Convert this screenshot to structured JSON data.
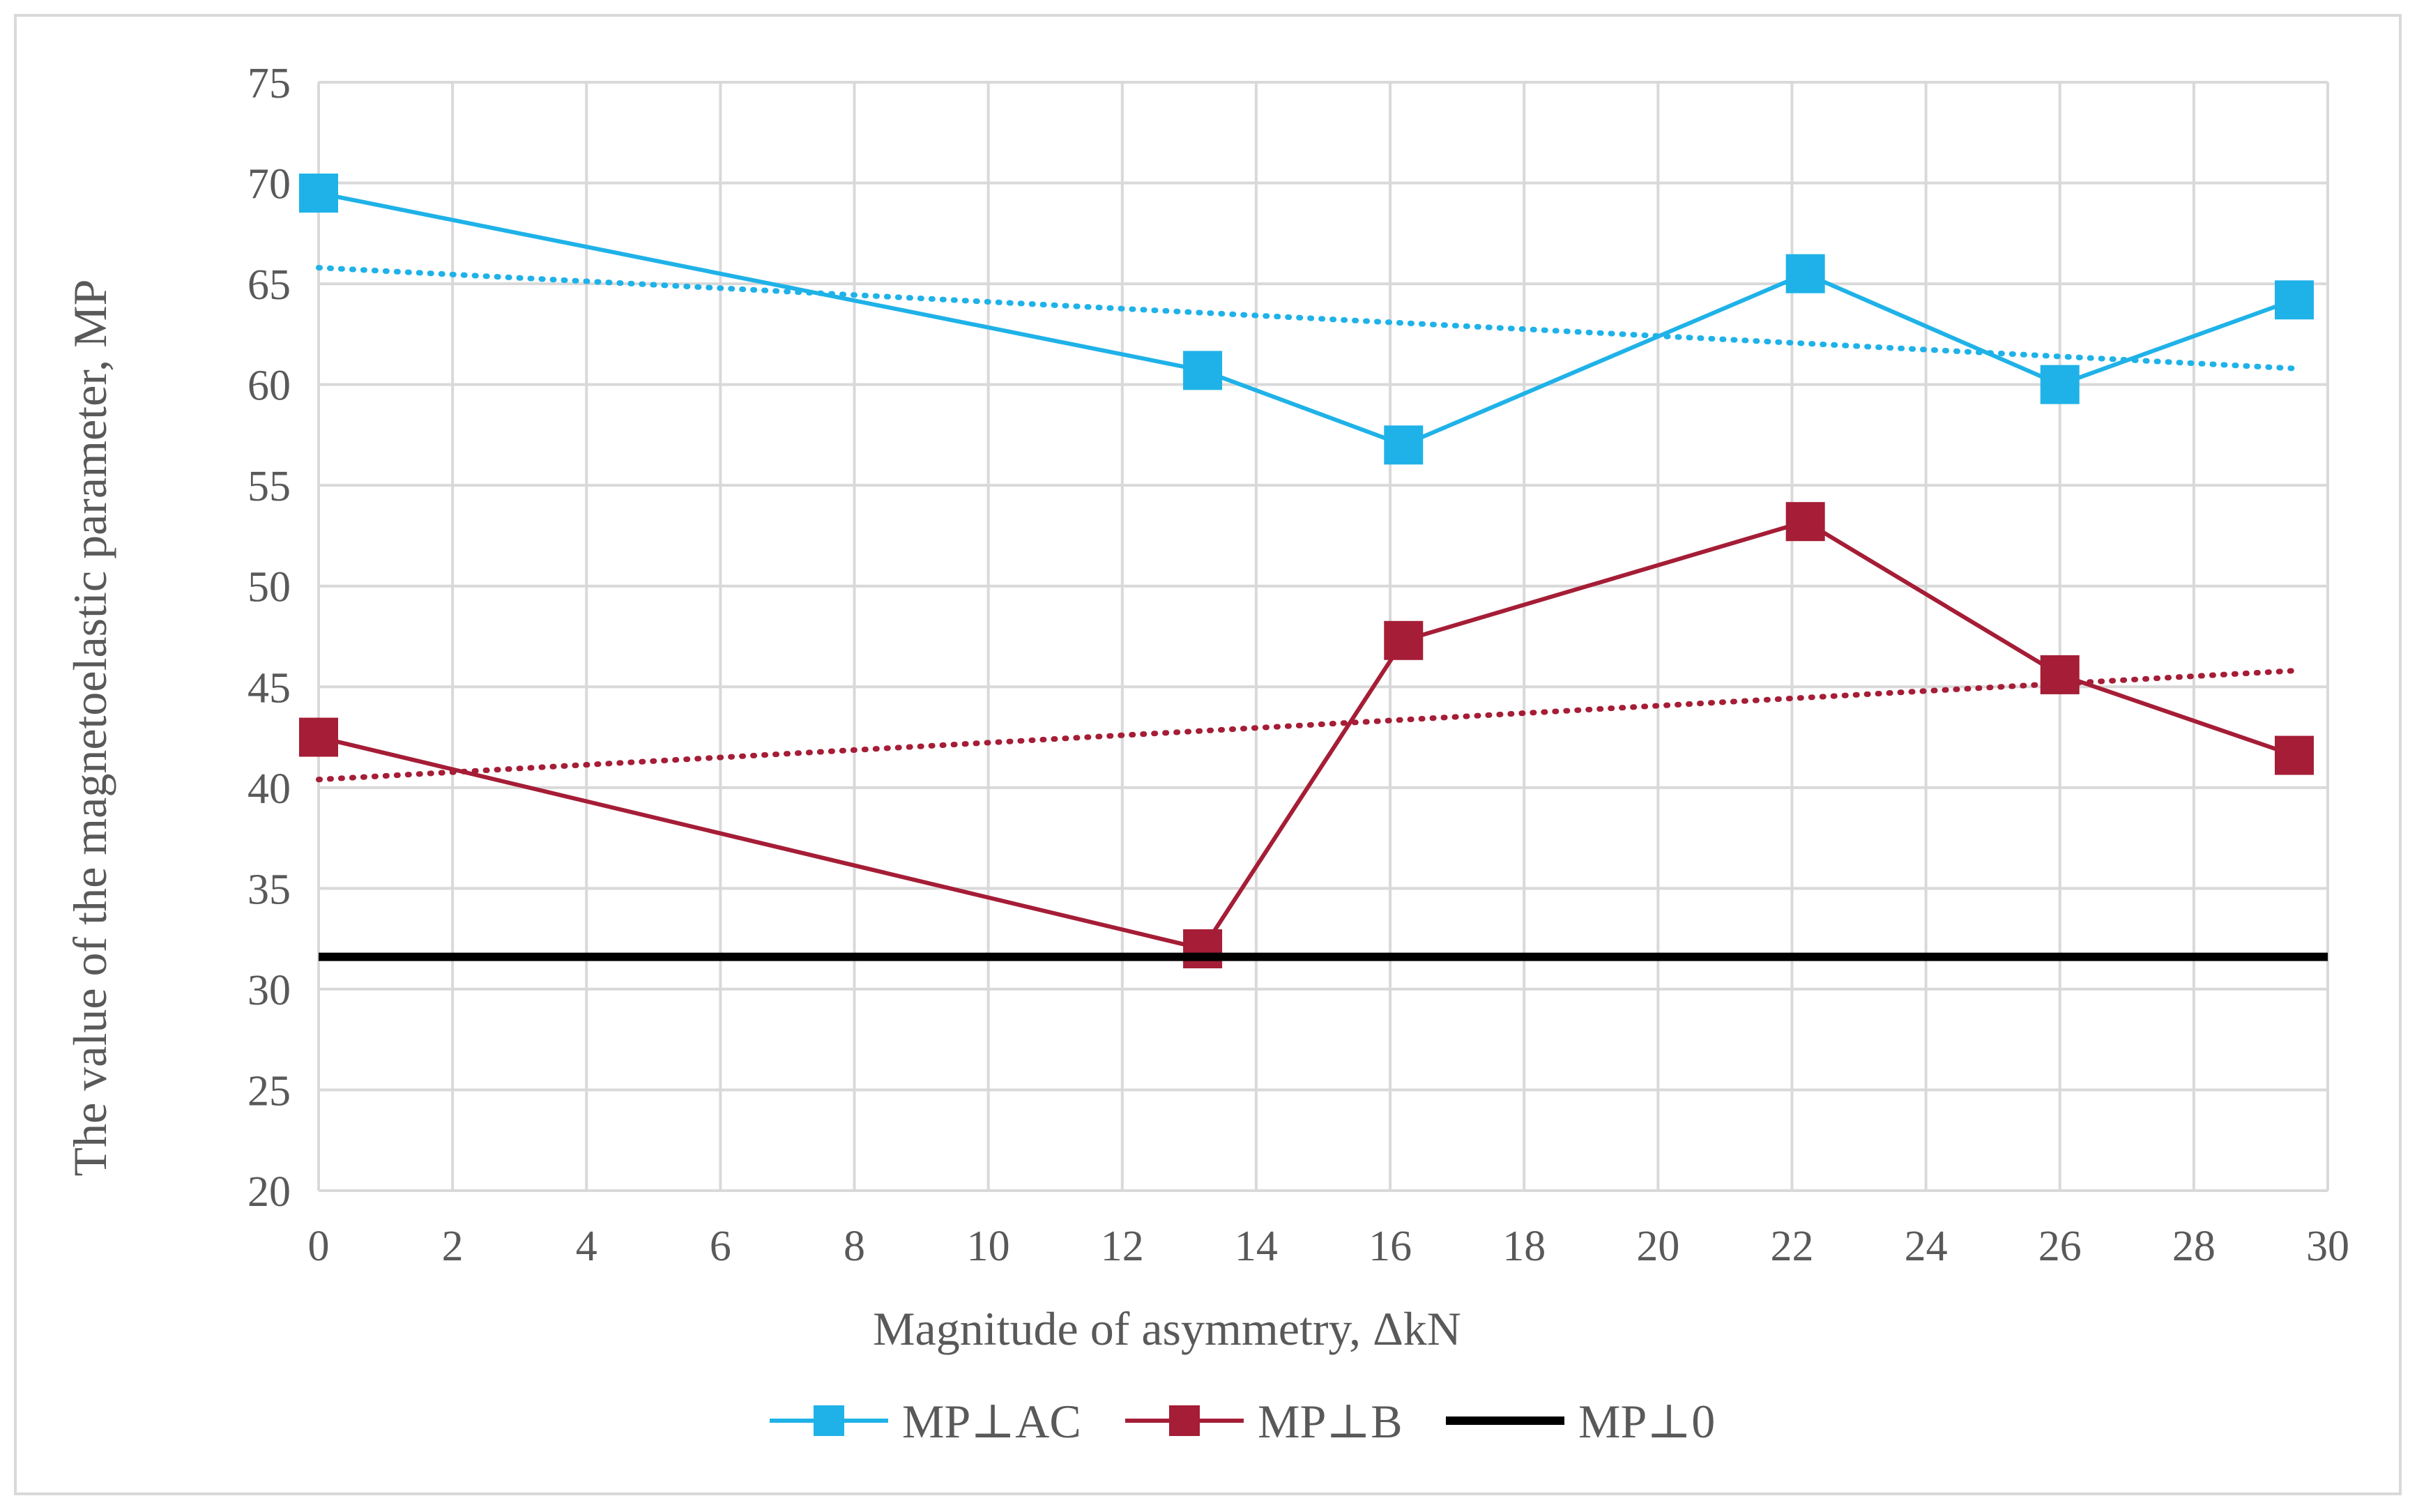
{
  "chart_data": {
    "type": "line",
    "title": "",
    "xlabel": "Magnitude of asymmetry, ΔkN",
    "ylabel": "The value of the magnetoelastic  parameter, MP",
    "xlim": [
      0,
      30
    ],
    "ylim": [
      20,
      75
    ],
    "x_ticks": [
      0,
      2,
      4,
      6,
      8,
      10,
      12,
      14,
      16,
      18,
      20,
      22,
      24,
      26,
      28,
      30
    ],
    "y_ticks": [
      20,
      25,
      30,
      35,
      40,
      45,
      50,
      55,
      60,
      65,
      70,
      75
    ],
    "grid": true,
    "legend_position": "bottom",
    "series": [
      {
        "name": "MP⊥AC",
        "color": "#1fb2e8",
        "marker": "square",
        "x": [
          0,
          13.2,
          16.2,
          22.2,
          26,
          29.5
        ],
        "y": [
          69.5,
          60.7,
          57,
          65.5,
          60,
          64.2
        ],
        "trendline": {
          "style": "dotted",
          "x": [
            0,
            29.5
          ],
          "y": [
            65.8,
            60.8
          ]
        }
      },
      {
        "name": "MP⊥B",
        "color": "#a51d36",
        "marker": "square",
        "x": [
          0,
          13.2,
          16.2,
          22.2,
          26,
          29.5
        ],
        "y": [
          42.5,
          32,
          47.3,
          53.2,
          45.6,
          41.6
        ],
        "trendline": {
          "style": "dotted",
          "x": [
            0,
            29.5
          ],
          "y": [
            40.4,
            45.8
          ]
        }
      },
      {
        "name": "MP⊥0",
        "color": "#000000",
        "marker": "none",
        "x": [
          0,
          30
        ],
        "y": [
          31.6,
          31.6
        ]
      }
    ]
  }
}
